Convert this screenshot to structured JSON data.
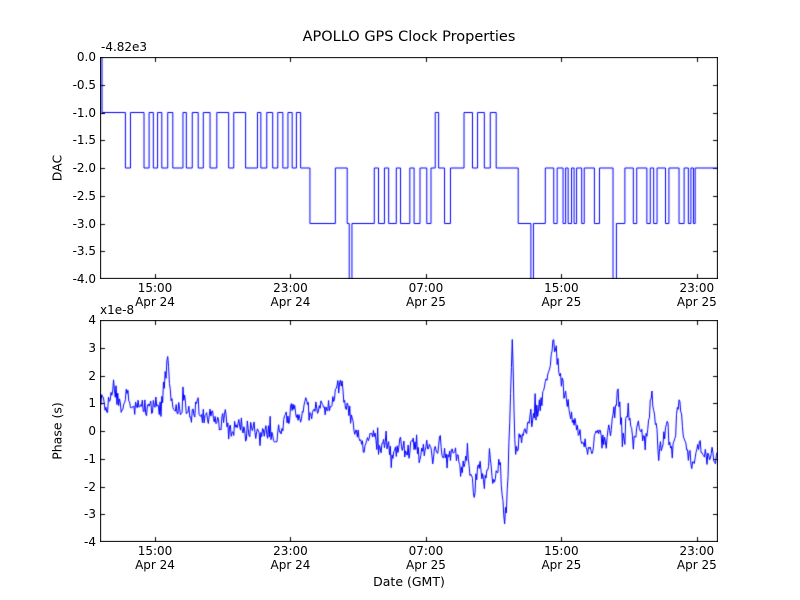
{
  "title": "APOLLO GPS Clock Properties",
  "xlabel": "Date (GMT)",
  "colors": {
    "background": "#ffffff",
    "axes": "#000000"
  },
  "chart_data": [
    {
      "type": "line",
      "name": "dac-vs-time",
      "ylabel": "DAC",
      "offset_label": "-4.82e3",
      "line_color": "#0000ff",
      "line_style": "step",
      "grid": false,
      "legend": "none",
      "ylim": [
        -4.0,
        0.0
      ],
      "yticks": [
        0.0,
        -0.5,
        -1.0,
        -1.5,
        -2.0,
        -2.5,
        -3.0,
        -3.5,
        -4.0
      ],
      "ytick_labels": [
        "0.0",
        "-0.5",
        "-1.0",
        "-1.5",
        "-2.0",
        "-2.5",
        "-3.0",
        "-3.5",
        "-4.0"
      ],
      "xlim_hours": [
        0,
        36.5
      ],
      "xtick_hours": [
        3.25,
        11.25,
        19.25,
        27.25,
        35.25
      ],
      "xtick_labels": [
        "15:00\nApr 24",
        "23:00\nApr 24",
        "07:00\nApr 25",
        "15:00\nApr 25",
        "23:00\nApr 25"
      ],
      "points": [
        [
          0,
          0
        ],
        [
          0.12,
          -1
        ],
        [
          1.5,
          -2
        ],
        [
          1.8,
          -1
        ],
        [
          2.6,
          -2
        ],
        [
          2.9,
          -1
        ],
        [
          3.15,
          -2
        ],
        [
          3.4,
          -1
        ],
        [
          3.65,
          -2
        ],
        [
          4.0,
          -1
        ],
        [
          4.3,
          -2
        ],
        [
          4.9,
          -1
        ],
        [
          5.1,
          -2
        ],
        [
          5.45,
          -1
        ],
        [
          5.8,
          -2
        ],
        [
          6.1,
          -1
        ],
        [
          6.5,
          -2
        ],
        [
          6.9,
          -1
        ],
        [
          7.6,
          -2
        ],
        [
          7.9,
          -1
        ],
        [
          8.6,
          -2
        ],
        [
          9.3,
          -1
        ],
        [
          9.5,
          -2
        ],
        [
          9.85,
          -1
        ],
        [
          10.2,
          -2
        ],
        [
          10.5,
          -1
        ],
        [
          10.8,
          -2
        ],
        [
          11.1,
          -1
        ],
        [
          11.35,
          -2
        ],
        [
          11.6,
          -1
        ],
        [
          11.85,
          -2
        ],
        [
          12.4,
          -3
        ],
        [
          13.9,
          -2
        ],
        [
          14.6,
          -3
        ],
        [
          14.72,
          -4
        ],
        [
          14.88,
          -3
        ],
        [
          16.2,
          -2
        ],
        [
          16.45,
          -3
        ],
        [
          16.8,
          -2
        ],
        [
          17.05,
          -3
        ],
        [
          17.5,
          -2
        ],
        [
          17.75,
          -3
        ],
        [
          18.3,
          -2
        ],
        [
          18.55,
          -3
        ],
        [
          18.9,
          -2
        ],
        [
          19.3,
          -3
        ],
        [
          19.55,
          -2
        ],
        [
          19.8,
          -1
        ],
        [
          20.0,
          -2
        ],
        [
          20.35,
          -3
        ],
        [
          20.7,
          -2
        ],
        [
          21.5,
          -1
        ],
        [
          22.0,
          -2
        ],
        [
          22.3,
          -1
        ],
        [
          22.7,
          -2
        ],
        [
          23.05,
          -1
        ],
        [
          23.4,
          -2
        ],
        [
          24.7,
          -3
        ],
        [
          25.45,
          -4
        ],
        [
          25.6,
          -3
        ],
        [
          26.3,
          -2
        ],
        [
          26.8,
          -3
        ],
        [
          27.0,
          -2
        ],
        [
          27.35,
          -3
        ],
        [
          27.5,
          -2
        ],
        [
          27.65,
          -3
        ],
        [
          27.85,
          -2
        ],
        [
          28.0,
          -3
        ],
        [
          28.15,
          -2
        ],
        [
          28.45,
          -3
        ],
        [
          28.6,
          -2
        ],
        [
          29.2,
          -3
        ],
        [
          29.5,
          -2
        ],
        [
          30.3,
          -4
        ],
        [
          30.5,
          -3
        ],
        [
          31.0,
          -2
        ],
        [
          31.5,
          -3
        ],
        [
          31.7,
          -2
        ],
        [
          32.3,
          -3
        ],
        [
          32.5,
          -2
        ],
        [
          32.7,
          -3
        ],
        [
          32.9,
          -2
        ],
        [
          33.4,
          -3
        ],
        [
          33.6,
          -2
        ],
        [
          34.2,
          -3
        ],
        [
          34.5,
          -2
        ],
        [
          34.75,
          -3
        ],
        [
          34.9,
          -2
        ],
        [
          35.05,
          -3
        ],
        [
          35.15,
          -2
        ],
        [
          36.5,
          -2
        ]
      ]
    },
    {
      "type": "line",
      "name": "phase-vs-time",
      "ylabel": "Phase (s)",
      "offset_label": "x1e-8",
      "line_color": "#0000ff",
      "line_style": "noisy",
      "grid": false,
      "legend": "none",
      "ylim": [
        -4,
        4
      ],
      "yticks": [
        4,
        3,
        2,
        1,
        0,
        -1,
        -2,
        -3,
        -4
      ],
      "ytick_labels": [
        "4",
        "3",
        "2",
        "1",
        "0",
        "-1",
        "-2",
        "-3",
        "-4"
      ],
      "xlim_hours": [
        0,
        36.5
      ],
      "xtick_hours": [
        3.25,
        11.25,
        19.25,
        27.25,
        35.25
      ],
      "xtick_labels": [
        "15:00\nApr 24",
        "23:00\nApr 24",
        "07:00\nApr 25",
        "15:00\nApr 25",
        "23:00\nApr 25"
      ],
      "noise": {
        "amplitude": 0.3,
        "seed": 1234567,
        "step_hours": 0.05,
        "spike_chance": 0.04,
        "spike_scale": 2.5
      },
      "points": [
        [
          0,
          1.2
        ],
        [
          0.4,
          0.8
        ],
        [
          0.8,
          1.6
        ],
        [
          1.2,
          0.9
        ],
        [
          1.6,
          1.3
        ],
        [
          2.0,
          0.8
        ],
        [
          2.4,
          1.1
        ],
        [
          2.8,
          0.7
        ],
        [
          3.2,
          1.0
        ],
        [
          3.6,
          0.8
        ],
        [
          4.0,
          2.6
        ],
        [
          4.2,
          0.9
        ],
        [
          4.6,
          0.7
        ],
        [
          5.0,
          1.0
        ],
        [
          5.4,
          0.6
        ],
        [
          5.8,
          0.9
        ],
        [
          6.2,
          0.4
        ],
        [
          6.6,
          0.7
        ],
        [
          7.0,
          0.2
        ],
        [
          7.4,
          0.5
        ],
        [
          7.8,
          0.0
        ],
        [
          8.2,
          0.4
        ],
        [
          8.6,
          -0.2
        ],
        [
          9.0,
          0.2
        ],
        [
          9.4,
          -0.3
        ],
        [
          9.8,
          0.1
        ],
        [
          10.2,
          -0.3
        ],
        [
          10.6,
          0.0
        ],
        [
          11.0,
          0.4
        ],
        [
          11.4,
          0.8
        ],
        [
          11.8,
          0.5
        ],
        [
          12.2,
          1.0
        ],
        [
          12.6,
          0.6
        ],
        [
          13.0,
          1.1
        ],
        [
          13.4,
          0.8
        ],
        [
          13.8,
          1.2
        ],
        [
          14.2,
          1.8
        ],
        [
          14.5,
          1.0
        ],
        [
          14.9,
          0.4
        ],
        [
          15.3,
          -0.3
        ],
        [
          15.7,
          -0.6
        ],
        [
          16.1,
          -0.1
        ],
        [
          16.5,
          -0.8
        ],
        [
          16.9,
          -0.3
        ],
        [
          17.3,
          -0.9
        ],
        [
          17.7,
          -0.4
        ],
        [
          18.1,
          -0.8
        ],
        [
          18.5,
          -0.5
        ],
        [
          18.9,
          -0.9
        ],
        [
          19.3,
          -0.5
        ],
        [
          19.7,
          -1.0
        ],
        [
          20.1,
          -0.4
        ],
        [
          20.5,
          -1.2
        ],
        [
          20.9,
          -0.7
        ],
        [
          21.3,
          -1.4
        ],
        [
          21.7,
          -0.9
        ],
        [
          22.1,
          -2.2
        ],
        [
          22.4,
          -1.1
        ],
        [
          22.7,
          -1.8
        ],
        [
          23.0,
          -0.9
        ],
        [
          23.3,
          -2.0
        ],
        [
          23.6,
          -1.1
        ],
        [
          23.9,
          -3.1
        ],
        [
          24.1,
          -1.4
        ],
        [
          24.35,
          3.4
        ],
        [
          24.5,
          -0.6
        ],
        [
          24.8,
          -0.3
        ],
        [
          25.2,
          0.1
        ],
        [
          25.6,
          0.5
        ],
        [
          26.0,
          0.9
        ],
        [
          26.4,
          1.8
        ],
        [
          26.8,
          3.2
        ],
        [
          27.1,
          2.4
        ],
        [
          27.4,
          1.4
        ],
        [
          27.8,
          0.6
        ],
        [
          28.2,
          0.0
        ],
        [
          28.6,
          -0.4
        ],
        [
          29.0,
          -0.7
        ],
        [
          29.4,
          -0.1
        ],
        [
          29.8,
          -0.5
        ],
        [
          30.2,
          0.2
        ],
        [
          30.6,
          1.3
        ],
        [
          30.9,
          -0.3
        ],
        [
          31.2,
          0.9
        ],
        [
          31.5,
          -0.4
        ],
        [
          31.8,
          0.5
        ],
        [
          32.2,
          -0.6
        ],
        [
          32.6,
          1.4
        ],
        [
          33.0,
          -0.8
        ],
        [
          33.4,
          0.1
        ],
        [
          33.8,
          -0.9
        ],
        [
          34.2,
          1.1
        ],
        [
          34.6,
          -0.6
        ],
        [
          35.0,
          -1.2
        ],
        [
          35.4,
          -0.4
        ],
        [
          35.8,
          -1.0
        ],
        [
          36.2,
          -0.8
        ],
        [
          36.5,
          -1.1
        ]
      ]
    }
  ]
}
